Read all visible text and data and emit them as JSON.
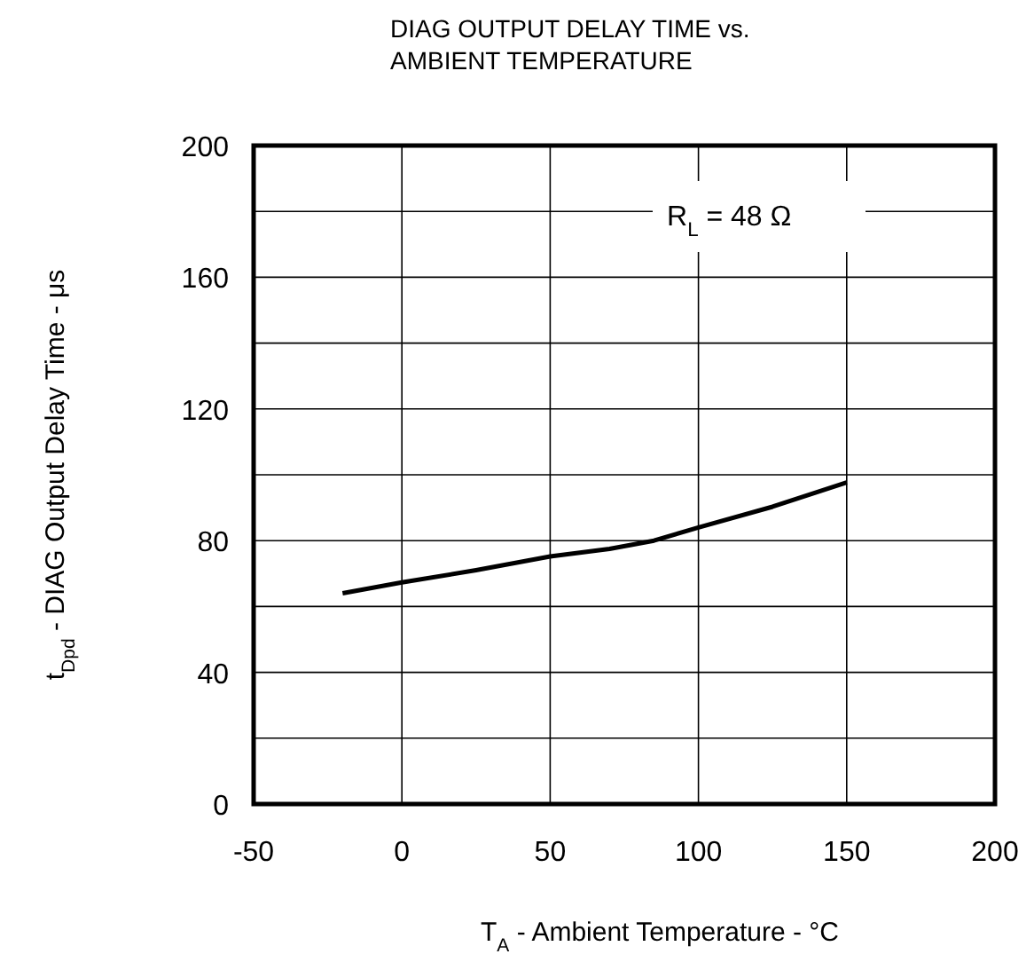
{
  "chart_data": {
    "type": "line",
    "title": "DIAG OUTPUT DELAY TIME vs.\nAMBIENT TEMPERATURE",
    "xlabel": "T$_{A}$ - Ambient Temperature - °C",
    "ylabel": "t$_{Dpd}$ - DIAG Output Delay Time - μs",
    "annotations": [
      "R$_{L}$ = 48 Ω"
    ],
    "x": [
      -20,
      0,
      25,
      50,
      70,
      85,
      100,
      125,
      150
    ],
    "series": [
      {
        "color": "#000000",
        "values": [
          64,
          67.3,
          71,
          75.2,
          77.5,
          80,
          84,
          90.3,
          97.7
        ]
      }
    ],
    "xlim": [
      -50,
      200
    ],
    "xticks": [
      -50,
      0,
      50,
      100,
      150,
      200
    ],
    "ylim": [
      0,
      200
    ],
    "yticks": [
      0,
      {
        "value": 20,
        "label": null
      },
      40,
      {
        "value": 60,
        "label": null
      },
      80,
      {
        "value": 100,
        "label": null
      },
      120,
      {
        "value": 140,
        "label": null
      },
      160,
      {
        "value": 180,
        "label": null
      },
      200
    ],
    "grid": true,
    "marker": "none",
    "line_style": "solid"
  }
}
